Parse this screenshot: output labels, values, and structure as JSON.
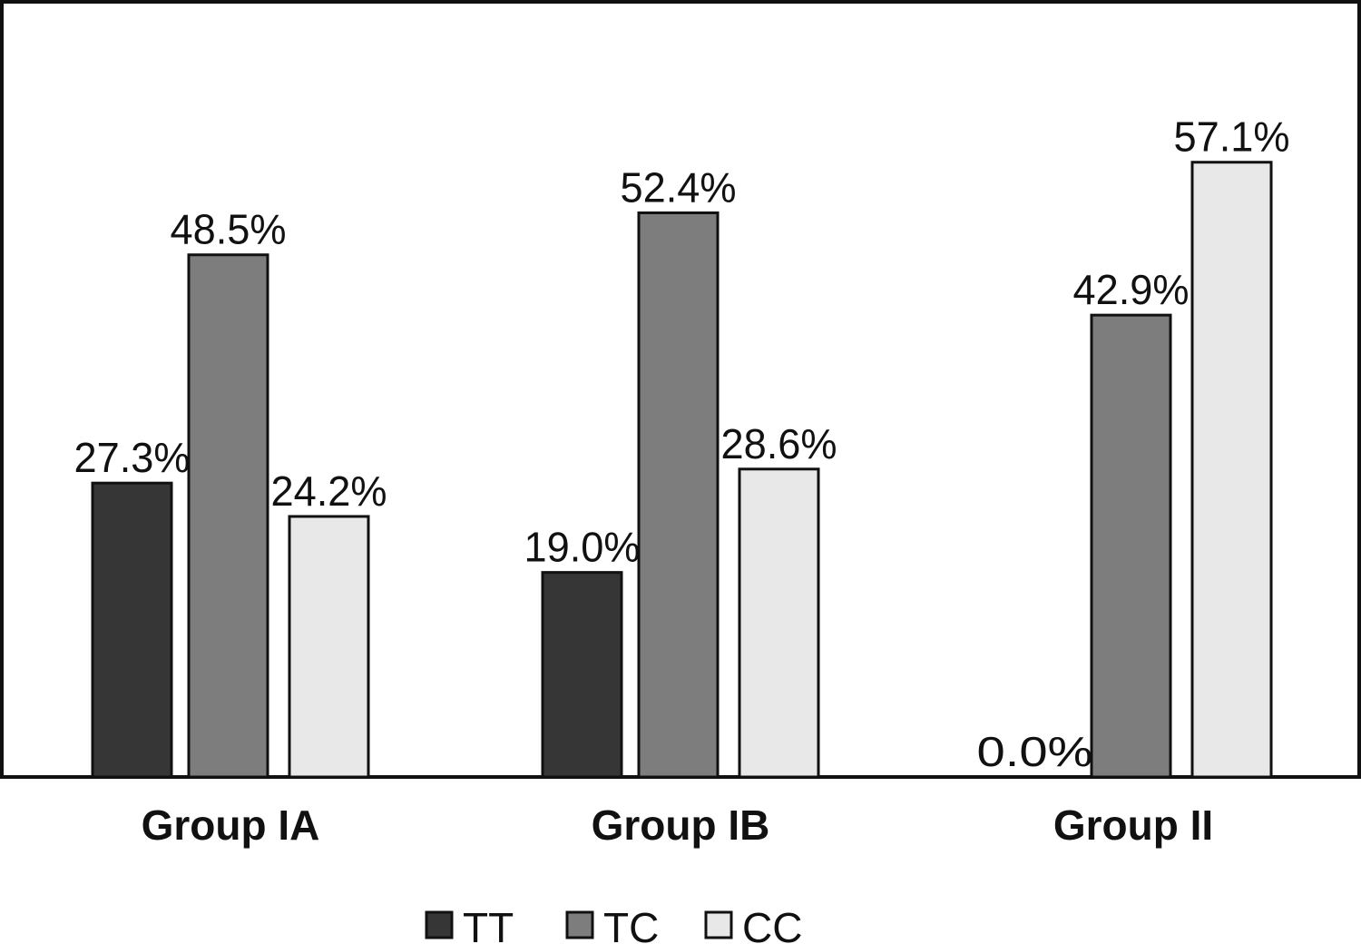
{
  "chart_data": {
    "type": "bar",
    "title": "",
    "xlabel": "",
    "ylabel": "",
    "ylim": [
      0,
      72
    ],
    "grid": false,
    "legend_position": "bottom",
    "categories": [
      "Group IA",
      "Group IB",
      "Group II"
    ],
    "series": [
      {
        "name": "TT",
        "color": "#363636",
        "values": [
          27.3,
          19.0,
          0.0
        ],
        "labels": [
          "27.3%",
          "19.0%",
          "0.0%"
        ]
      },
      {
        "name": "TC",
        "color": "#7d7d7d",
        "values": [
          48.5,
          52.4,
          42.9
        ],
        "labels": [
          "48.5%",
          "52.4%",
          "42.9%"
        ]
      },
      {
        "name": "CC",
        "color": "#e8e8e8",
        "values": [
          24.2,
          28.6,
          57.1
        ],
        "labels": [
          "24.2%",
          "28.6%",
          "57.1%"
        ]
      }
    ]
  }
}
